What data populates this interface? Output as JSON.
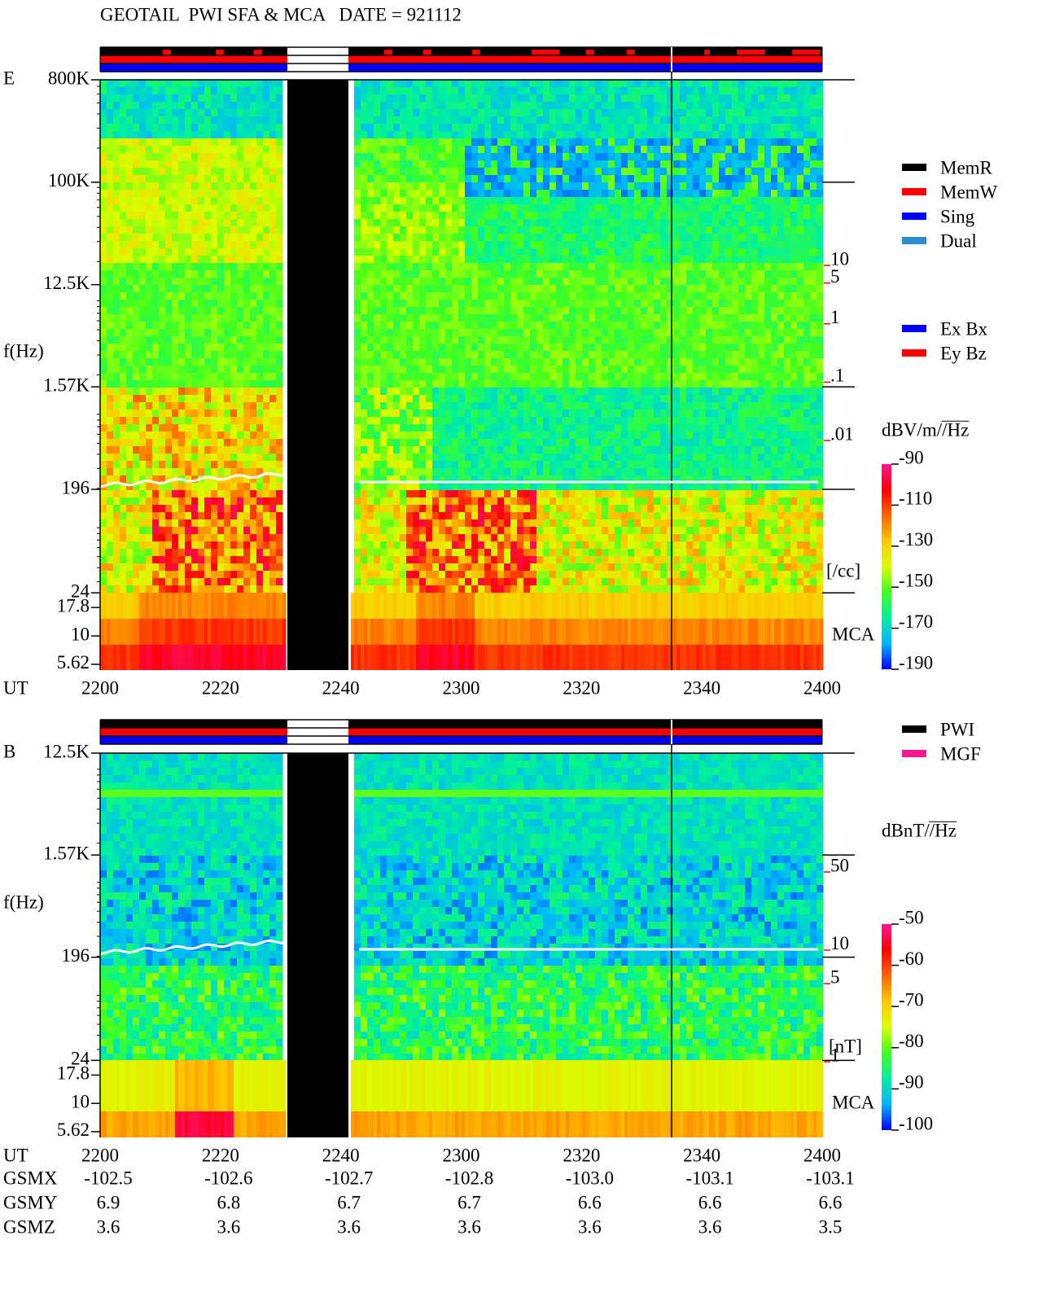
{
  "chart_data": [
    {
      "type": "spectrogram",
      "title": "GEOTAIL  PWI SFA & MCA   DATE = 921112",
      "panel_label": "E",
      "y_label": "f(Hz)",
      "x_label": "UT",
      "log_y": true,
      "ylim": [
        5,
        800000
      ],
      "yticks": [
        {
          "value": 800000,
          "label": "800K"
        },
        {
          "value": 100000,
          "label": "100K"
        },
        {
          "value": 12500,
          "label": "12.5K"
        },
        {
          "value": 1570,
          "label": "1.57K"
        },
        196,
        24,
        17.8,
        10,
        5.62
      ],
      "xticks": [
        "2200",
        "2220",
        "2240",
        "2300",
        "2320",
        "2340",
        "2400"
      ],
      "mca_label": "MCA",
      "colorbar": {
        "label": "dBV/m//Hz",
        "ticks": [
          -90,
          -110,
          -130,
          -150,
          -170,
          -190
        ],
        "colormap": [
          "#0000ff",
          "#00b4ff",
          "#00f0a0",
          "#40ff20",
          "#d8ff00",
          "#ffc800",
          "#ff6400",
          "#ff0000",
          "#ff1493"
        ]
      },
      "right_scale": {
        "color": "#ff0000",
        "ticks": [
          10,
          5,
          1,
          {
            "value": 0.1,
            "label": ".1"
          },
          {
            "value": 0.01,
            "label": ".01"
          }
        ],
        "unit": "[/cc]"
      },
      "legend": [
        {
          "name": "MemR",
          "color": "#000000"
        },
        {
          "name": "MemW",
          "color": "#ff0000"
        },
        {
          "name": "Sing",
          "color": "#0000ff"
        },
        {
          "name": "Dual",
          "color": "#2a8fd0"
        }
      ],
      "legend2": [
        {
          "name": "Ex Bx",
          "color": "#0000ff"
        },
        {
          "name": "Ey Bz",
          "color": "#ff0000"
        }
      ]
    },
    {
      "type": "spectrogram",
      "panel_label": "B",
      "y_label": "f(Hz)",
      "x_label": "UT",
      "log_y": true,
      "ylim": [
        5,
        12500
      ],
      "yticks": [
        {
          "value": 12500,
          "label": "12.5K"
        },
        {
          "value": 1570,
          "label": "1.57K"
        },
        196,
        24,
        17.8,
        10,
        5.62
      ],
      "xticks": [
        "2200",
        "2220",
        "2240",
        "2300",
        "2320",
        "2340",
        "2400"
      ],
      "mca_label": "MCA",
      "colorbar": {
        "label": "dBnT//Hz",
        "ticks": [
          -50,
          -60,
          -70,
          -80,
          -90,
          -100
        ],
        "colormap": [
          "#0000ff",
          "#00b4ff",
          "#00f0a0",
          "#40ff20",
          "#d8ff00",
          "#ffc800",
          "#ff6400",
          "#ff0000",
          "#ff1493"
        ]
      },
      "right_scale": {
        "color": "#ff0000",
        "ticks": [
          50,
          10,
          5,
          1
        ],
        "unit": "[nT]"
      },
      "legend": [
        {
          "name": "PWI",
          "color": "#000000"
        },
        {
          "name": "MGF",
          "color": "#ff1493"
        }
      ],
      "ephemeris": [
        {
          "name": "GSMX",
          "values": [
            -102.5,
            -102.6,
            -102.7,
            -102.8,
            {
              "value": -103,
              "label": "-103.0"
            },
            -103.1,
            -103.1
          ]
        },
        {
          "name": "GSMY",
          "values": [
            6.9,
            6.8,
            6.7,
            6.7,
            6.6,
            6.6,
            6.6
          ]
        },
        {
          "name": "GSMZ",
          "values": [
            3.6,
            3.6,
            3.6,
            3.6,
            3.6,
            3.6,
            3.5
          ]
        }
      ]
    }
  ]
}
